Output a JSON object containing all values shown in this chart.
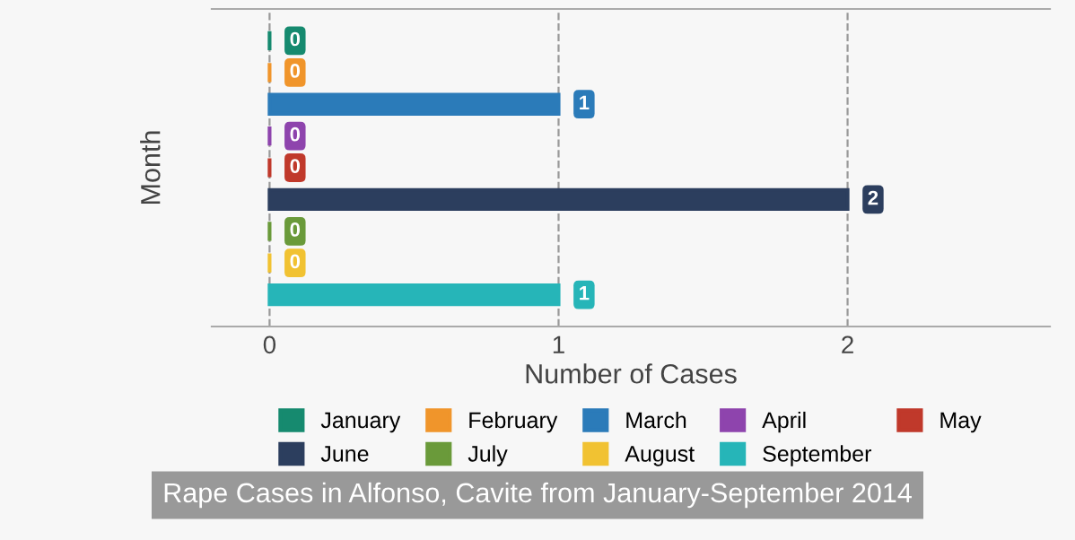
{
  "chart_data": {
    "type": "bar",
    "orientation": "horizontal",
    "title": "Rape Cases in Alfonso, Cavite from January-September 2014",
    "xlabel": "Number of Cases",
    "ylabel": "Month",
    "categories": [
      null
    ],
    "series": [
      {
        "name": "January",
        "color": "#168a6f",
        "values": [
          0
        ]
      },
      {
        "name": "February",
        "color": "#f0952b",
        "values": [
          0
        ]
      },
      {
        "name": "March",
        "color": "#2b7bb9",
        "values": [
          1
        ]
      },
      {
        "name": "April",
        "color": "#8e44ad",
        "values": [
          0
        ]
      },
      {
        "name": "May",
        "color": "#c0392b",
        "values": [
          0
        ]
      },
      {
        "name": "June",
        "color": "#2c3e5e",
        "values": [
          2
        ]
      },
      {
        "name": "July",
        "color": "#6a9a3a",
        "values": [
          0
        ]
      },
      {
        "name": "August",
        "color": "#f1c232",
        "values": [
          0
        ]
      },
      {
        "name": "September",
        "color": "#26b5b8",
        "values": [
          1
        ]
      }
    ],
    "xlim": [
      -0.2,
      2.7
    ],
    "xticks": [
      0,
      1,
      2
    ],
    "grid": "x",
    "legend": "bottom",
    "data_labels": true
  }
}
